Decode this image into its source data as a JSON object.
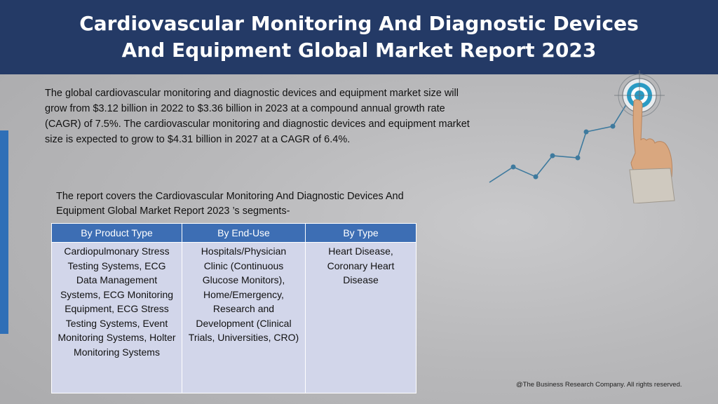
{
  "header": {
    "title": "Cardiovascular Monitoring And Diagnostic Devices And Equipment Global Market Report 2023"
  },
  "intro_text": "The global cardiovascular monitoring and diagnostic devices and equipment market size will grow from $3.12 billion in 2022 to $3.36 billion in 2023 at a compound annual growth rate (CAGR) of 7.5%. The cardiovascular monitoring and diagnostic devices and equipment market size is expected to grow to $4.31 billion in 2027 at a CAGR of 6.4%.",
  "covers_text": "The report covers the Cardiovascular Monitoring And Diagnostic Devices And Equipment Global Market Report 2023 ’s segments-",
  "segments_table": {
    "headers": [
      "By Product Type",
      "By End-Use",
      "By Type"
    ],
    "cells": [
      "Cardiopulmonary Stress Testing Systems, ECG Data Management Systems, ECG Monitoring Equipment, ECG Stress Testing Systems, Event Monitoring Systems, Holter Monitoring Systems",
      "Hospitals/Physician Clinic (Continuous Glucose Monitors), Home/Emergency, Research and Development (Clinical Trials, Universities, CRO)",
      "Heart Disease, Coronary Heart Disease"
    ]
  },
  "illustration": {
    "icon": "target-growth-chart-icon",
    "line_color": "#3e7a9e",
    "target_color": "#2a9bc4"
  },
  "footer": {
    "copyright": "@The Business Research Company. All rights reserved."
  },
  "colors": {
    "header_bg": "#243a66",
    "table_header_bg": "#3d6eb4",
    "table_cell_bg": "#d2d6ea",
    "accent_bar": "#2f6fb7"
  }
}
